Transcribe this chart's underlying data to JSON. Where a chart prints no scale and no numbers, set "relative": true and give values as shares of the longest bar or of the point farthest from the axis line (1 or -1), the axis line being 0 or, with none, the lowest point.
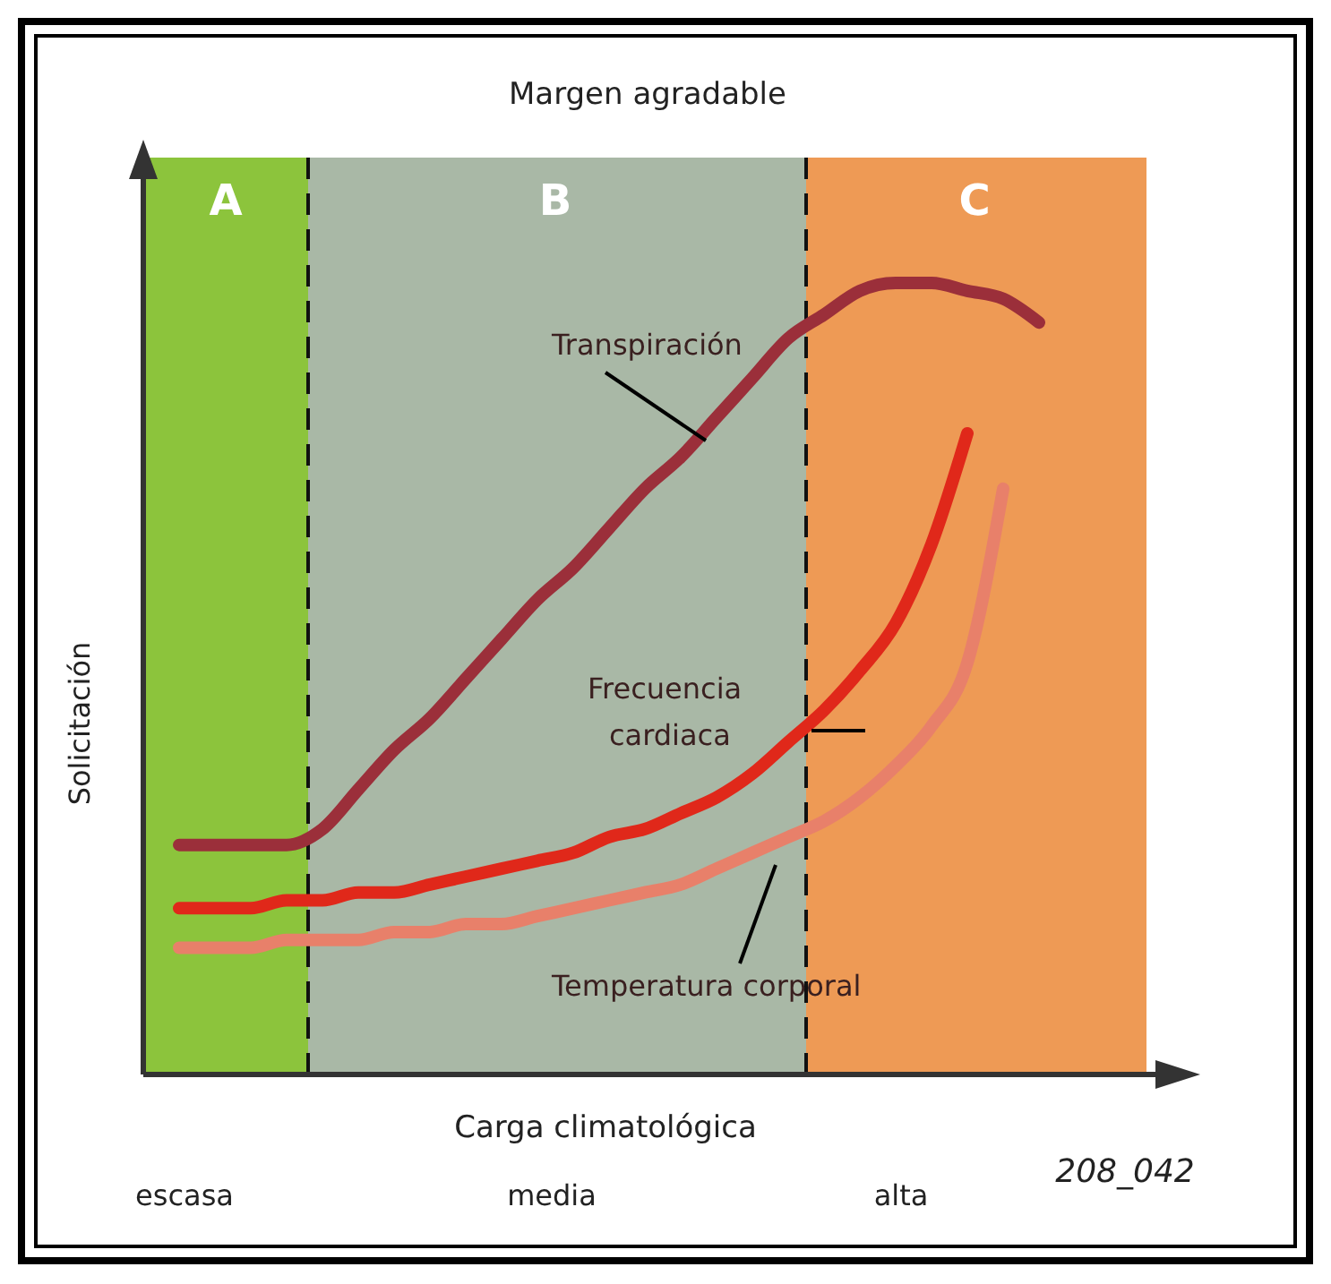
{
  "chart_data": {
    "type": "line",
    "relative": true,
    "title": "Margen agradable",
    "xlabel": "Carga climatológica",
    "ylabel": "Solicitación",
    "legend": false,
    "categories": [
      null,
      null,
      null,
      null,
      null,
      null,
      null,
      null,
      null,
      null,
      null,
      null,
      null,
      null,
      null,
      null,
      null,
      null,
      null,
      null,
      null,
      null,
      null,
      null,
      null,
      null,
      null,
      null,
      null
    ],
    "series": [
      {
        "name": "Transpiración",
        "color": "#9b2f3a",
        "values": [
          null,
          0.29,
          0.29,
          0.29,
          0.29,
          0.31,
          0.36,
          0.41,
          0.45,
          0.5,
          0.55,
          0.6,
          0.64,
          0.69,
          0.74,
          0.78,
          0.83,
          0.88,
          0.93,
          0.96,
          0.99,
          1,
          1,
          0.99,
          0.98,
          0.95,
          null,
          null,
          null
        ]
      },
      {
        "name": "Frecuencia cardiaca",
        "color": "#e0281a",
        "values": [
          null,
          0.21,
          0.21,
          0.21,
          0.22,
          0.22,
          0.23,
          0.23,
          0.24,
          0.25,
          0.26,
          0.27,
          0.28,
          0.3,
          0.31,
          0.33,
          0.35,
          0.38,
          0.42,
          0.46,
          0.51,
          0.57,
          0.67,
          0.81,
          null,
          null,
          null,
          null,
          null
        ]
      },
      {
        "name": "Temperatura corporal",
        "color": "#e8806a",
        "values": [
          null,
          0.16,
          0.16,
          0.16,
          0.17,
          0.17,
          0.17,
          0.18,
          0.18,
          0.19,
          0.19,
          0.2,
          0.21,
          0.22,
          0.23,
          0.24,
          0.26,
          0.28,
          0.3,
          0.32,
          0.35,
          0.39,
          0.44,
          0.52,
          0.74,
          null,
          null,
          null,
          null
        ]
      }
    ],
    "annotations": [
      "escasa",
      "media",
      "alta",
      "208_042",
      "A",
      "B",
      "C"
    ]
  }
}
